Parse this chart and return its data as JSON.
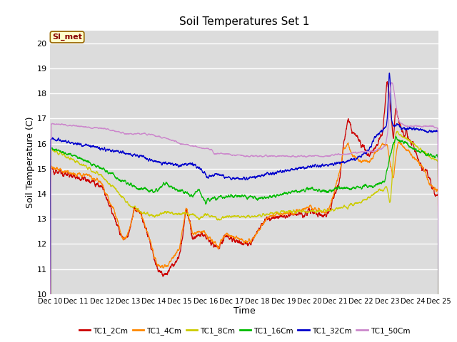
{
  "title": "Soil Temperatures Set 1",
  "xlabel": "Time",
  "ylabel": "Soil Temperature (C)",
  "ylim": [
    10.0,
    20.5
  ],
  "yticks": [
    10.0,
    11.0,
    12.0,
    13.0,
    14.0,
    15.0,
    16.0,
    17.0,
    18.0,
    19.0,
    20.0
  ],
  "x_start": 0,
  "x_end": 360,
  "n_points": 3600,
  "plot_bg": "#dcdcdc",
  "grid_color": "#ffffff",
  "annotation_text": "SI_met",
  "annotation_bg": "#ffffcc",
  "annotation_border": "#996600",
  "series": [
    {
      "name": "TC1_2Cm",
      "color": "#cc0000"
    },
    {
      "name": "TC1_4Cm",
      "color": "#ff8800"
    },
    {
      "name": "TC1_8Cm",
      "color": "#cccc00"
    },
    {
      "name": "TC1_16Cm",
      "color": "#00bb00"
    },
    {
      "name": "TC1_32Cm",
      "color": "#0000cc"
    },
    {
      "name": "TC1_50Cm",
      "color": "#cc88cc"
    }
  ],
  "xtick_labels": [
    "Dec 10",
    "Dec 11",
    "Dec 12",
    "Dec 13",
    "Dec 14",
    "Dec 15",
    "Dec 16",
    "Dec 17",
    "Dec 18",
    "Dec 19",
    "Dec 20",
    "Dec 21",
    "Dec 22",
    "Dec 23",
    "Dec 24",
    "Dec 25"
  ],
  "xtick_positions": [
    0,
    24,
    48,
    72,
    96,
    120,
    144,
    168,
    192,
    216,
    240,
    264,
    288,
    312,
    336,
    360
  ]
}
